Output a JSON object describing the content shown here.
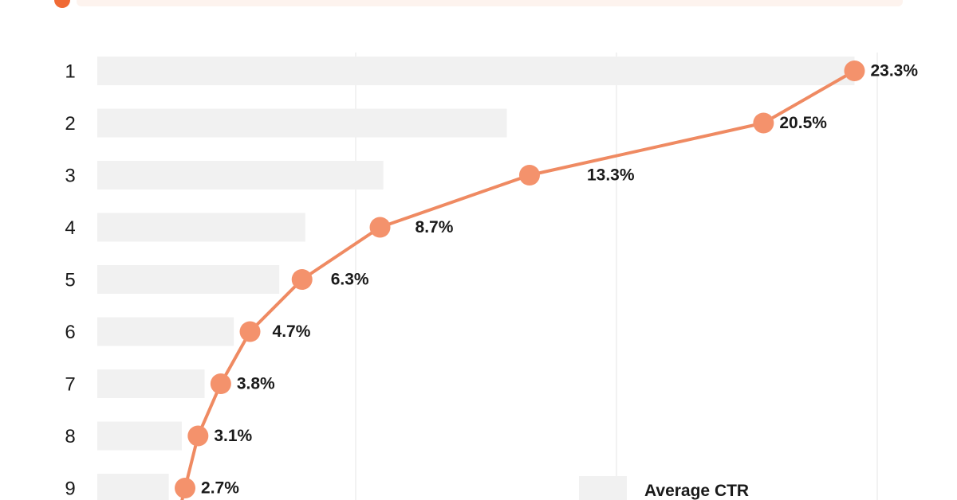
{
  "chart_data": {
    "type": "bar",
    "categories": [
      "1",
      "2",
      "3",
      "4",
      "5",
      "6",
      "7",
      "8",
      "9"
    ],
    "series": [
      {
        "name": "Average CTR",
        "values": [
          23.3,
          12.6,
          8.8,
          6.4,
          5.6,
          4.2,
          3.3,
          2.6,
          2.2
        ]
      },
      {
        "values": [
          23.3,
          20.5,
          13.3,
          8.7,
          6.3,
          4.7,
          3.8,
          3.1,
          2.7
        ],
        "labels": [
          "23.3%",
          "20.5%",
          "13.3%",
          "8.7%",
          "6.3%",
          "4.7%",
          "3.8%",
          "3.1%",
          "2.7%"
        ]
      }
    ],
    "xlim": [
      0,
      24
    ],
    "grid": true,
    "legend": "bottom-right",
    "colors": {
      "bar": "#f1f1f1",
      "line": "#ef8a62",
      "marker": "#f4926c",
      "grid": "#ededed",
      "accent": "#f06a35"
    }
  }
}
